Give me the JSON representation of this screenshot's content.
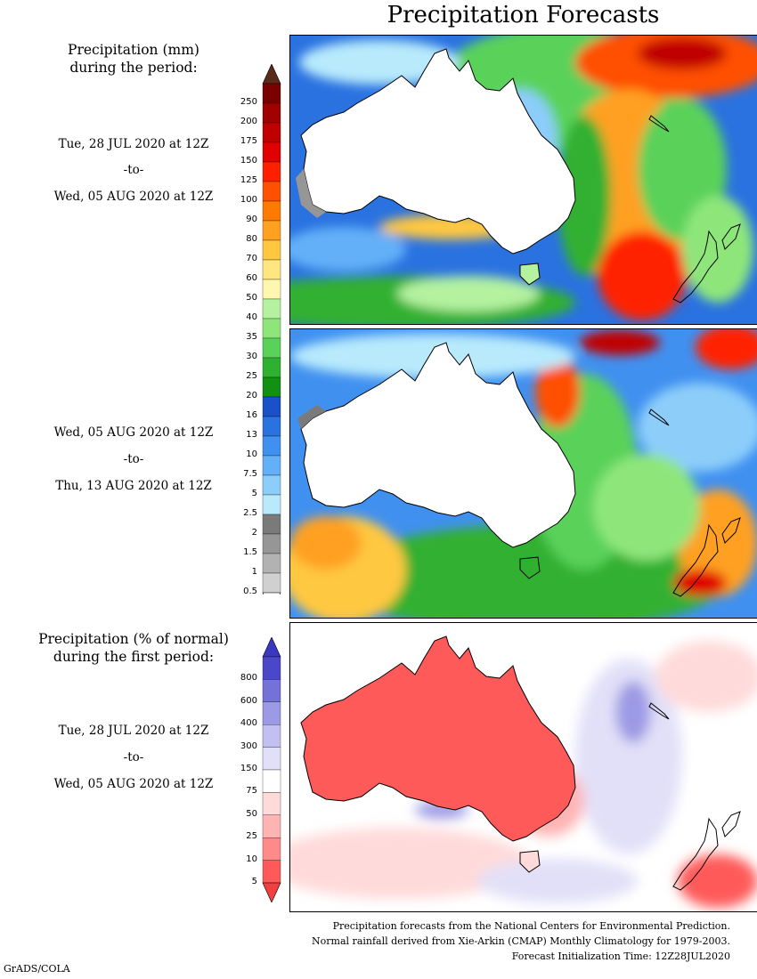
{
  "title": "Precipitation Forecasts",
  "panel1": {
    "header_line1": "Precipitation (mm)",
    "header_line2": "during the period:",
    "start": "Tue, 28 JUL 2020 at 12Z",
    "sep": "-to-",
    "end": "Wed, 05 AUG 2020 at 12Z"
  },
  "panel2": {
    "start": "Wed, 05 AUG 2020 at 12Z",
    "sep": "-to-",
    "end": "Thu, 13 AUG 2020 at 12Z"
  },
  "panel3": {
    "header_line1": "Precipitation (% of normal)",
    "header_line2": "during the first period:",
    "start": "Tue, 28 JUL 2020 at 12Z",
    "sep": "-to-",
    "end": "Wed, 05 AUG 2020 at 12Z"
  },
  "precip_scale": {
    "labels": [
      "250",
      "200",
      "175",
      "150",
      "125",
      "100",
      "90",
      "80",
      "70",
      "60",
      "50",
      "40",
      "35",
      "30",
      "25",
      "20",
      "16",
      "13",
      "10",
      "7.5",
      "5",
      "2.5",
      "2",
      "1.5",
      "1",
      "0.5"
    ],
    "colors": [
      "#7a0000",
      "#a00000",
      "#c00000",
      "#e00000",
      "#ff2000",
      "#ff5000",
      "#ff7a00",
      "#ffa020",
      "#ffc840",
      "#ffe680",
      "#fff6b0",
      "#b4f2a0",
      "#8ee67a",
      "#5ad25a",
      "#30b030",
      "#129012",
      "#1a50c8",
      "#2a72e0",
      "#4090f0",
      "#64b0f8",
      "#8ccdfa",
      "#b8eafc",
      "#7a7a7a",
      "#969696",
      "#b2b2b2",
      "#d0d0d0"
    ],
    "top_arrow_color": "#5a2a1a",
    "bottom_arrow_color": "#ffffff"
  },
  "anomaly_scale": {
    "labels": [
      "800",
      "600",
      "400",
      "300",
      "150",
      "75",
      "50",
      "25",
      "10",
      "5"
    ],
    "colors": [
      "#4a48c8",
      "#7472d8",
      "#9c9ae4",
      "#c2c0f0",
      "#e2e0f8",
      "#ffffff",
      "#ffdada",
      "#ffb4b4",
      "#ff8a8a",
      "#ff5a5a"
    ],
    "top_arrow_color": "#3a38c0",
    "bottom_arrow_color": "#f04040"
  },
  "footer": {
    "line1": "Precipitation forecasts from the National Centers for Environmental Prediction.",
    "line2": "Normal rainfall derived from Xie-Arkin (CMAP) Monthly Climatology for 1979-2003.",
    "line3": "Forecast Initialization Time: 12Z28JUL2020"
  },
  "credit": "GrADS/COLA"
}
